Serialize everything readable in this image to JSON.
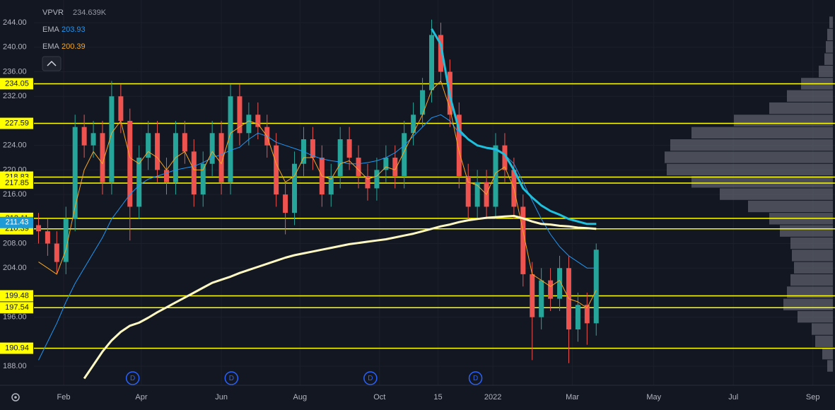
{
  "chart_data": {
    "type": "candlestick",
    "x": [
      0,
      1,
      2,
      3,
      4,
      5,
      6,
      7,
      8,
      9,
      10,
      11,
      12,
      13,
      14,
      15,
      16,
      17,
      18,
      19,
      20,
      21,
      22,
      23,
      24,
      25,
      26,
      27,
      28,
      29,
      30,
      31,
      32,
      33,
      34,
      35,
      36,
      37,
      38,
      39,
      40,
      41,
      42,
      43,
      44,
      45,
      46,
      47,
      48,
      49,
      50,
      51,
      52,
      53,
      54,
      55,
      56,
      57,
      58,
      59,
      60,
      61
    ],
    "xlim": [
      -0.5,
      86.5
    ],
    "xticks": [
      {
        "value": 2.75,
        "label": "Feb"
      },
      {
        "value": 11.25,
        "label": "Apr"
      },
      {
        "value": 20,
        "label": "Jun"
      },
      {
        "value": 28.6,
        "label": "Aug"
      },
      {
        "value": 37.3,
        "label": "Oct"
      },
      {
        "value": 43.7,
        "label": "15"
      },
      {
        "value": 49.7,
        "label": "2022"
      },
      {
        "value": 58.4,
        "label": "Mar"
      },
      {
        "value": 67.3,
        "label": "May"
      },
      {
        "value": 76,
        "label": "Jul"
      },
      {
        "value": 84.7,
        "label": "Sep"
      }
    ],
    "ylim": [
      184.9,
      247.7
    ],
    "yticks": [
      {
        "value": 188,
        "label": "188.00"
      },
      {
        "value": 196,
        "label": "196.00"
      },
      {
        "value": 204,
        "label": "204.00"
      },
      {
        "value": 208,
        "label": "208.00"
      },
      {
        "value": 216,
        "label": "216.00"
      },
      {
        "value": 220,
        "label": "220.00"
      },
      {
        "value": 224,
        "label": "224.00"
      },
      {
        "value": 232,
        "label": "232.00"
      },
      {
        "value": 236,
        "label": "236.00"
      },
      {
        "value": 240,
        "label": "240.00"
      },
      {
        "value": 244,
        "label": "244.00"
      }
    ],
    "grid": true,
    "candles": {
      "up_color": "#26a69a",
      "down_color": "#ef5350",
      "open": [
        211,
        210,
        208,
        205,
        212,
        227,
        224,
        226,
        218,
        232,
        228,
        214,
        222,
        226,
        220,
        218,
        226,
        223,
        216,
        221,
        226,
        218,
        232,
        226,
        229,
        227,
        224,
        216,
        213,
        221,
        225,
        222,
        216,
        219,
        225,
        222,
        219,
        217,
        220,
        222,
        219,
        226,
        229,
        233,
        242,
        236,
        229,
        219,
        214,
        218,
        214,
        224,
        220,
        214,
        203,
        196,
        202,
        199,
        204,
        194,
        198,
        195
      ],
      "high": [
        213,
        212,
        210,
        214,
        229,
        229,
        228,
        228,
        234.5,
        234,
        230,
        224,
        228,
        228,
        222,
        228,
        228,
        225,
        223,
        228,
        228,
        234,
        234,
        231,
        231,
        229,
        226,
        218,
        223,
        227,
        227,
        224,
        221,
        227,
        227,
        224,
        221,
        222,
        224,
        224,
        228,
        231,
        235,
        244.5,
        244,
        238,
        231,
        221,
        220,
        220,
        226,
        226,
        222,
        216,
        205,
        204,
        204,
        206,
        206,
        200,
        200,
        208
      ],
      "low": [
        208,
        206,
        203,
        203,
        210,
        222,
        222,
        216,
        216,
        226,
        208.5,
        212,
        220,
        218,
        216,
        216,
        221,
        214,
        214,
        219,
        216,
        216,
        224,
        224,
        225,
        222,
        214,
        209.5,
        211,
        219,
        220,
        214,
        214,
        217,
        220,
        217,
        215,
        215,
        218,
        217,
        217,
        224,
        227,
        231,
        234,
        227,
        217,
        212,
        212,
        212,
        212,
        218,
        212,
        201,
        189,
        194,
        197,
        197,
        188.5,
        192,
        191.5,
        193
      ],
      "close": [
        210,
        208,
        205,
        212,
        227,
        224,
        226,
        218,
        232,
        228,
        214,
        222,
        226,
        220,
        218,
        226,
        223,
        216,
        221,
        226,
        218,
        232,
        226,
        229,
        227,
        224,
        216,
        213,
        221,
        225,
        222,
        216,
        219,
        225,
        222,
        219,
        217,
        220,
        222,
        219,
        226,
        229,
        233,
        242,
        236,
        229,
        219,
        214,
        218,
        214,
        224,
        220,
        214,
        203,
        196,
        202,
        199,
        204,
        194,
        198,
        195,
        207
      ]
    },
    "lines": [
      {
        "name": "EMA",
        "legend_value": 203.93,
        "color": "#2196f3",
        "width": 1,
        "values": [
          189,
          192,
          195,
          198.5,
          201.5,
          204,
          206.5,
          209,
          212,
          214,
          216,
          217.5,
          218.5,
          219,
          219.5,
          220,
          220.3,
          220.6,
          221.2,
          222,
          222.5,
          223.2,
          223.7,
          225,
          226,
          225.5,
          224.5,
          224,
          223.5,
          223,
          222.3,
          221.8,
          221.5,
          221.3,
          221,
          221,
          221.2,
          221.5,
          222,
          222.8,
          224,
          225.5,
          227,
          228.5,
          229,
          228,
          226,
          225,
          224,
          223.5,
          223.2,
          222.5,
          221,
          218,
          215,
          212,
          209.5,
          207.5,
          206,
          205,
          204,
          204
        ]
      },
      {
        "name": "EMA",
        "legend_value": 200.39,
        "color": "#f5a623",
        "width": 1,
        "values": [
          205,
          204,
          203,
          207,
          214,
          220,
          223,
          221,
          226,
          228,
          222,
          221,
          223,
          222,
          220,
          222,
          223,
          220,
          220,
          223,
          221,
          226,
          227,
          228,
          227.5,
          225.5,
          221,
          218,
          219,
          222,
          222,
          219,
          218.5,
          221,
          221.5,
          220,
          218.5,
          219,
          220.5,
          220,
          223,
          226,
          229,
          233,
          234.5,
          230,
          223,
          218,
          217.5,
          216,
          219.5,
          220.5,
          217,
          210,
          203,
          202,
          201,
          202,
          199,
          198.5,
          197.5,
          200.4
        ]
      },
      {
        "color": "#fff9c4",
        "width": 3,
        "values": [
          null,
          null,
          null,
          null,
          null,
          186,
          188.2,
          190.4,
          192.2,
          193.6,
          194.6,
          195.1,
          195.9,
          196.8,
          197.6,
          198.4,
          199.2,
          200,
          200.8,
          201.6,
          202.1,
          202.6,
          203.2,
          203.7,
          204.2,
          204.7,
          205.2,
          205.7,
          206.1,
          206.4,
          206.7,
          207,
          207.3,
          207.6,
          207.9,
          208.1,
          208.3,
          208.5,
          208.7,
          209,
          209.3,
          209.6,
          210,
          210.4,
          210.8,
          211.1,
          211.5,
          211.8,
          212,
          212.2,
          212.3,
          212.4,
          212.5,
          212.1,
          211.6,
          211.2,
          211.1,
          210.9,
          210.8,
          210.6,
          210.5,
          210.4
        ]
      },
      {
        "color": "#1ec0dc",
        "width": 3,
        "values": [
          null,
          null,
          null,
          null,
          null,
          null,
          null,
          null,
          null,
          null,
          null,
          null,
          null,
          null,
          null,
          null,
          null,
          null,
          null,
          null,
          null,
          null,
          null,
          null,
          null,
          null,
          null,
          null,
          null,
          null,
          null,
          null,
          null,
          null,
          null,
          null,
          null,
          null,
          null,
          null,
          null,
          null,
          null,
          243,
          240.5,
          232,
          226.5,
          225,
          224,
          223.6,
          223.4,
          222.5,
          220,
          217,
          215.5,
          214.2,
          213.3,
          212.7,
          212,
          211.6,
          211.2,
          211.2
        ]
      }
    ],
    "levels": {
      "color": "#ffff00",
      "values": [
        234.05,
        227.59,
        218.83,
        217.85,
        212.11,
        210.39,
        199.48,
        197.54,
        190.94
      ]
    },
    "last_price": {
      "value": 211.43,
      "color": "#1e9bd7"
    },
    "events": {
      "label": "D",
      "x": [
        10.3,
        21.1,
        36.3,
        47.8
      ]
    },
    "volume_profile": {
      "name": "VPVR",
      "total": "234.639K",
      "color": "#5d606b",
      "prices": [
        188,
        190,
        192,
        194,
        196,
        198,
        200,
        202,
        204,
        206,
        208,
        210,
        212,
        214,
        216,
        218,
        220,
        222,
        224,
        226,
        228,
        230,
        232,
        234,
        236,
        238,
        240,
        242,
        244
      ],
      "values": [
        8,
        15,
        25,
        30,
        50,
        70,
        65,
        60,
        55,
        58,
        60,
        75,
        90,
        120,
        160,
        200,
        235,
        238,
        230,
        200,
        140,
        90,
        65,
        45,
        20,
        12,
        10,
        8,
        5
      ]
    }
  }
}
